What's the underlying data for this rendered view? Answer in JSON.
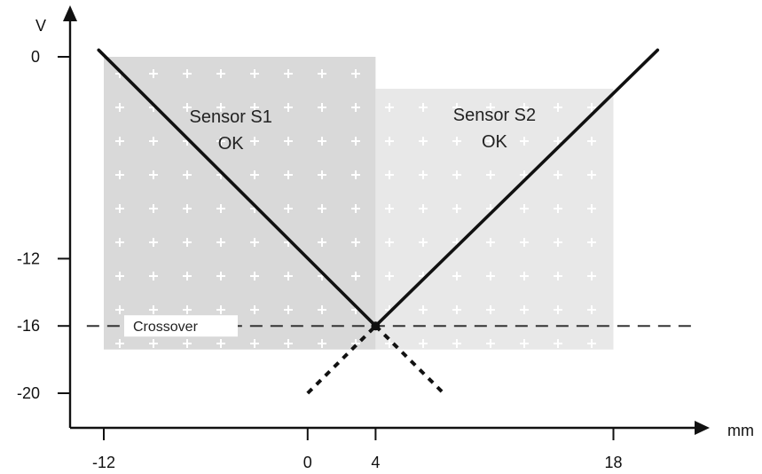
{
  "chart_data": {
    "type": "line",
    "title": "",
    "xlabel": "mm",
    "ylabel": "V",
    "xlim": [
      -13,
      24
    ],
    "ylim": [
      -21,
      1.5
    ],
    "x_ticks": [
      -12,
      0,
      4,
      18
    ],
    "y_ticks": [
      0,
      -12,
      -16,
      -20
    ],
    "x_tick_labels": [
      "-12",
      "0",
      "4",
      "18"
    ],
    "y_tick_labels": [
      "0",
      "-12",
      "-16",
      "-20"
    ],
    "regions": [
      {
        "id": "s1",
        "label_line1": "Sensor S1",
        "label_line2": "OK",
        "x": [
          -12,
          4
        ],
        "y": [
          -17.4,
          0
        ],
        "color": "#d9d9d9"
      },
      {
        "id": "s2",
        "label_line1": "Sensor S2",
        "label_line2": "OK",
        "x": [
          4,
          18
        ],
        "y": [
          -17.4,
          -1.9
        ],
        "color": "#e8e8e8"
      }
    ],
    "series": [
      {
        "id": "s1-solid",
        "style": "solid",
        "x": [
          -12.3,
          4
        ],
        "y": [
          0.4,
          -16
        ]
      },
      {
        "id": "s2-solid",
        "style": "solid",
        "x": [
          4,
          20.6
        ],
        "y": [
          -16,
          0.4
        ]
      },
      {
        "id": "s1-dotted",
        "style": "dotted",
        "x": [
          4,
          8
        ],
        "y": [
          -16,
          -20
        ]
      },
      {
        "id": "s2-dotted",
        "style": "dotted",
        "x": [
          0,
          4
        ],
        "y": [
          -20,
          -16
        ]
      }
    ],
    "crossover": {
      "label": "Crossover",
      "y": -16,
      "x_range": [
        -13,
        23
      ]
    },
    "grid": "white plus markers inside regions"
  }
}
